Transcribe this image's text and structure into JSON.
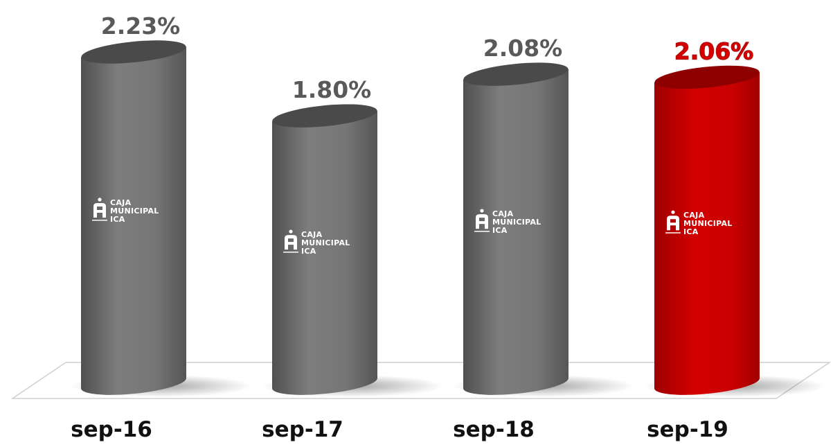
{
  "chart_data": {
    "type": "bar",
    "categories": [
      "sep-16",
      "sep-17",
      "sep-18",
      "sep-19"
    ],
    "values": [
      2.23,
      1.8,
      2.08,
      2.06
    ],
    "value_labels": [
      "2.23%",
      "1.80%",
      "2.08%",
      "2.06%"
    ],
    "highlight_index": 3,
    "title": "",
    "xlabel": "",
    "ylabel": "",
    "ylim": [
      0,
      2.3
    ],
    "grid": false,
    "legend": "none",
    "bar_style": "3d-cylinder"
  },
  "logo": {
    "lines": [
      "CAJA",
      "MUNICIPAL",
      "ICA"
    ]
  },
  "colors": {
    "bar": "#6e6e6e",
    "bar_top": "#4a4a4a",
    "highlight_bar": "#c80000",
    "highlight_top": "#8e0000",
    "value_label": "#595959",
    "highlight_label": "#d40000",
    "category_label": "#111111"
  }
}
